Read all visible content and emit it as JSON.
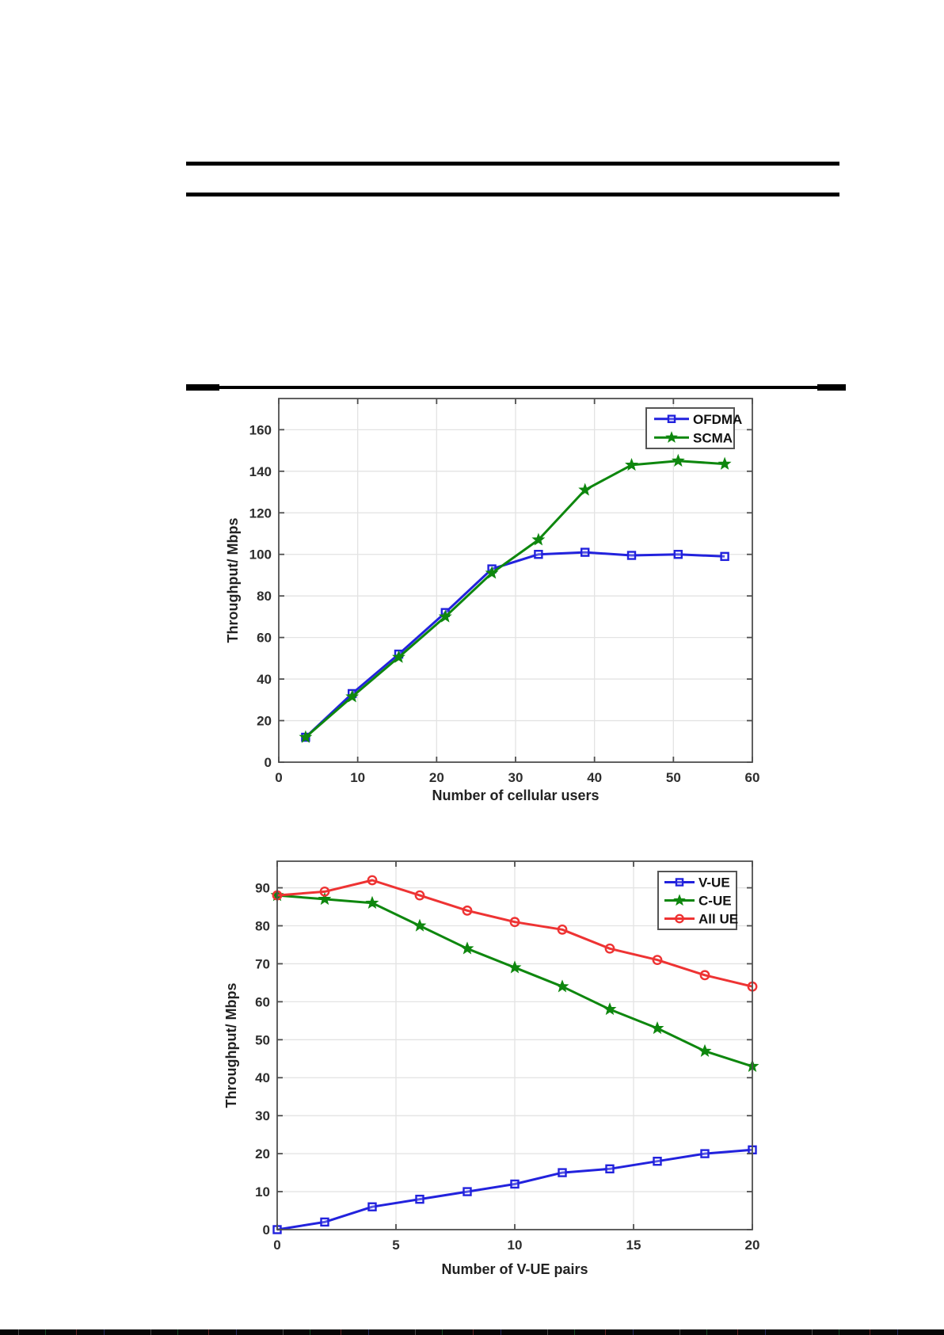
{
  "figure": {
    "description": "Two MATLAB-style throughput plots on a white paper page"
  },
  "chart_data": [
    {
      "type": "line",
      "title": "",
      "xlabel": "Number of cellular users",
      "ylabel": "Throughput/ Mbps",
      "xlim": [
        0,
        60
      ],
      "ylim": [
        0,
        175
      ],
      "xticks": [
        0,
        10,
        20,
        30,
        40,
        50,
        60
      ],
      "yticks": [
        0,
        20,
        40,
        60,
        80,
        100,
        120,
        140,
        160
      ],
      "grid": true,
      "legend_position": "top-right",
      "x": [
        3.4,
        9.3,
        15.2,
        21.1,
        27.0,
        32.9,
        38.8,
        44.7,
        50.6,
        56.5
      ],
      "series": [
        {
          "name": "OFDMA",
          "color": "#2222dd",
          "marker": "square",
          "values": [
            12,
            33,
            52,
            72,
            93,
            100,
            101,
            99.5,
            100,
            99
          ]
        },
        {
          "name": "SCMA",
          "color": "#0e870e",
          "marker": "star",
          "values": [
            12,
            31.5,
            50.5,
            70,
            91,
            107,
            131,
            143,
            145,
            143.5
          ]
        }
      ]
    },
    {
      "type": "line",
      "title": "",
      "xlabel": "Number of V-UE pairs",
      "ylabel": "Throughput/ Mbps",
      "xlim": [
        0,
        20
      ],
      "ylim": [
        0,
        97
      ],
      "xticks": [
        0,
        5,
        10,
        15,
        20
      ],
      "yticks": [
        0,
        10,
        20,
        30,
        40,
        50,
        60,
        70,
        80,
        90
      ],
      "grid": true,
      "legend_position": "top-right",
      "x": [
        0,
        2,
        4,
        6,
        8,
        10,
        12,
        14,
        16,
        18,
        20
      ],
      "series": [
        {
          "name": "V-UE",
          "color": "#2222dd",
          "marker": "square",
          "values": [
            0,
            2,
            6,
            8,
            10,
            12,
            15,
            16,
            18,
            20,
            21
          ]
        },
        {
          "name": "C-UE",
          "color": "#0e870e",
          "marker": "star",
          "values": [
            88,
            87,
            86,
            80,
            74,
            69,
            64,
            58,
            53,
            47,
            43
          ]
        },
        {
          "name": "All UE",
          "color": "#ee3333",
          "marker": "circle",
          "values": [
            88,
            89,
            92,
            88,
            84,
            81,
            79,
            74,
            71,
            67,
            64
          ]
        }
      ]
    }
  ],
  "style_colors": {
    "axis_frame": "#4f4f4f",
    "grid": "#e3e3e3",
    "tick_text": "#2e2e2e",
    "rule": "#000000"
  }
}
